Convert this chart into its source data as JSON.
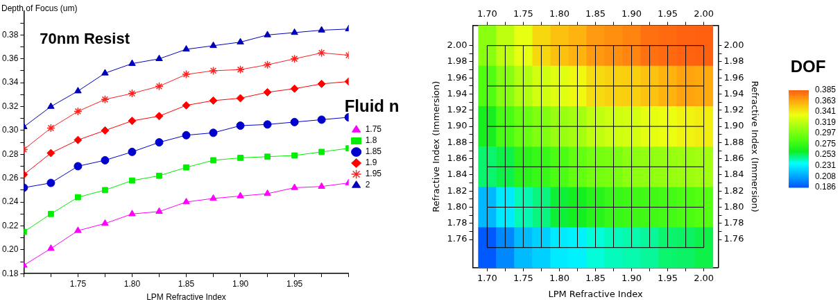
{
  "chart_data": [
    {
      "type": "line",
      "xlabel": "LPM Refractive Index",
      "ylabel": "Depth of Focus (um)",
      "legend_title": "Fluid n",
      "legend": "right",
      "annotations": [
        "70nm Resist"
      ],
      "x": [
        1.7,
        1.725,
        1.75,
        1.775,
        1.8,
        1.825,
        1.85,
        1.875,
        1.9,
        1.925,
        1.95,
        1.975,
        2.0
      ],
      "xlim": [
        1.7,
        2.0
      ],
      "xticks": [
        {
          "value": 1.7,
          "label": null
        },
        {
          "value": 1.725,
          "label": null
        },
        {
          "value": 1.75,
          "label": "1.75"
        },
        {
          "value": 1.775,
          "label": null
        },
        {
          "value": 1.8,
          "label": "1.80"
        },
        {
          "value": 1.825,
          "label": null
        },
        {
          "value": 1.85,
          "label": "1.85"
        },
        {
          "value": 1.875,
          "label": null
        },
        {
          "value": 1.9,
          "label": "1.90"
        },
        {
          "value": 1.925,
          "label": null
        },
        {
          "value": 1.95,
          "label": "1.95"
        },
        {
          "value": 1.975,
          "label": null
        },
        {
          "value": 2.0,
          "label": null
        }
      ],
      "ylim": [
        0.18,
        0.4
      ],
      "yticks": [
        {
          "value": 0.18,
          "label": "0.18"
        },
        {
          "value": 0.19,
          "label": null
        },
        {
          "value": 0.2,
          "label": "0.20"
        },
        {
          "value": 0.21,
          "label": null
        },
        {
          "value": 0.22,
          "label": "0.22"
        },
        {
          "value": 0.23,
          "label": null
        },
        {
          "value": 0.24,
          "label": "0.24"
        },
        {
          "value": 0.25,
          "label": null
        },
        {
          "value": 0.26,
          "label": "0.26"
        },
        {
          "value": 0.27,
          "label": null
        },
        {
          "value": 0.28,
          "label": "0.28"
        },
        {
          "value": 0.29,
          "label": null
        },
        {
          "value": 0.3,
          "label": "0.30"
        },
        {
          "value": 0.31,
          "label": null
        },
        {
          "value": 0.32,
          "label": "0.32"
        },
        {
          "value": 0.33,
          "label": null
        },
        {
          "value": 0.34,
          "label": "0.34"
        },
        {
          "value": 0.35,
          "label": null
        },
        {
          "value": 0.36,
          "label": "0.36"
        },
        {
          "value": 0.37,
          "label": null
        },
        {
          "value": 0.38,
          "label": "0.38"
        },
        {
          "value": 0.39,
          "label": null
        }
      ],
      "series": [
        {
          "name": "1.75",
          "color": "#ff00ff",
          "marker": "triangle",
          "values": [
            0.187,
            0.201,
            0.216,
            0.222,
            0.23,
            0.232,
            0.24,
            0.243,
            0.245,
            0.247,
            0.252,
            0.253,
            0.256
          ]
        },
        {
          "name": "1.8",
          "color": "#00ee00",
          "marker": "square",
          "values": [
            0.215,
            0.23,
            0.244,
            0.25,
            0.258,
            0.262,
            0.269,
            0.275,
            0.277,
            0.278,
            0.279,
            0.282,
            0.285
          ]
        },
        {
          "name": "1.85",
          "color": "#0000cc",
          "marker": "circle",
          "values": [
            0.252,
            0.256,
            0.27,
            0.275,
            0.282,
            0.29,
            0.296,
            0.298,
            0.304,
            0.305,
            0.307,
            0.309,
            0.311
          ]
        },
        {
          "name": "1.9",
          "color": "#ff0000",
          "marker": "diamond",
          "values": [
            0.263,
            0.281,
            0.292,
            0.3,
            0.308,
            0.312,
            0.321,
            0.325,
            0.327,
            0.332,
            0.335,
            0.339,
            0.341
          ]
        },
        {
          "name": "1.95",
          "color": "#ff2020",
          "marker": "cross",
          "values": [
            0.284,
            0.302,
            0.316,
            0.326,
            0.331,
            0.337,
            0.347,
            0.35,
            0.351,
            0.355,
            0.36,
            0.365,
            0.363
          ]
        },
        {
          "name": "2",
          "color": "#0000bb",
          "marker": "triangle",
          "values": [
            0.303,
            0.32,
            0.333,
            0.348,
            0.356,
            0.36,
            0.368,
            0.371,
            0.374,
            0.38,
            0.382,
            0.384,
            0.385
          ]
        }
      ]
    },
    {
      "type": "heatmap",
      "xlabel": "LPM Refractive Index",
      "ylabel": "Refractive Index (Immersion)",
      "y2label": "Refractive Index (Immersion)",
      "clabel": "DOF",
      "grid": true,
      "x": [
        1.7,
        1.725,
        1.75,
        1.775,
        1.8,
        1.825,
        1.85,
        1.875,
        1.9,
        1.925,
        1.95,
        1.975,
        2.0
      ],
      "y": [
        2.0,
        1.95,
        1.9,
        1.85,
        1.8,
        1.75
      ],
      "cells": [
        [
          0.303,
          0.32,
          0.333,
          0.348,
          0.356,
          0.36,
          0.368,
          0.371,
          0.374,
          0.38,
          0.382,
          0.384,
          0.385
        ],
        [
          0.284,
          0.302,
          0.316,
          0.326,
          0.331,
          0.337,
          0.347,
          0.35,
          0.351,
          0.355,
          0.36,
          0.365,
          0.363
        ],
        [
          0.263,
          0.281,
          0.292,
          0.3,
          0.308,
          0.312,
          0.321,
          0.325,
          0.327,
          0.332,
          0.335,
          0.339,
          0.341
        ],
        [
          0.252,
          0.256,
          0.27,
          0.275,
          0.282,
          0.29,
          0.296,
          0.298,
          0.304,
          0.305,
          0.307,
          0.309,
          0.311
        ],
        [
          0.215,
          0.23,
          0.244,
          0.25,
          0.258,
          0.262,
          0.269,
          0.275,
          0.277,
          0.278,
          0.279,
          0.282,
          0.285
        ],
        [
          0.187,
          0.201,
          0.216,
          0.222,
          0.23,
          0.232,
          0.24,
          0.243,
          0.245,
          0.247,
          0.252,
          0.253,
          0.256
        ]
      ],
      "clim": [
        0.186,
        0.385
      ],
      "cticks": [
        {
          "value": 0.186,
          "label": "0.186"
        },
        {
          "value": 0.208,
          "label": "0.208"
        },
        {
          "value": 0.231,
          "label": "0.231"
        },
        {
          "value": 0.253,
          "label": "0.253"
        },
        {
          "value": 0.275,
          "label": "0.275"
        },
        {
          "value": 0.297,
          "label": "0.297"
        },
        {
          "value": 0.319,
          "label": "0.319"
        },
        {
          "value": 0.341,
          "label": "0.341"
        },
        {
          "value": 0.363,
          "label": "0.363"
        },
        {
          "value": 0.385,
          "label": "0.385"
        }
      ],
      "colors": [
        "#0055ff",
        "#00aaff",
        "#00ffff",
        "#10ee20",
        "#55ff10",
        "#a0ff10",
        "#eeff10",
        "#ffb30f",
        "#ff6010"
      ],
      "xlim": [
        1.68,
        2.02
      ],
      "xticks": [
        {
          "value": 1.7,
          "label": "1.70"
        },
        {
          "value": 1.725,
          "label": null
        },
        {
          "value": 1.75,
          "label": "1.75"
        },
        {
          "value": 1.775,
          "label": null
        },
        {
          "value": 1.8,
          "label": "1.80"
        },
        {
          "value": 1.825,
          "label": null
        },
        {
          "value": 1.85,
          "label": "1.85"
        },
        {
          "value": 1.875,
          "label": null
        },
        {
          "value": 1.9,
          "label": "1.90"
        },
        {
          "value": 1.925,
          "label": null
        },
        {
          "value": 1.95,
          "label": "1.95"
        },
        {
          "value": 1.975,
          "label": null
        },
        {
          "value": 2.0,
          "label": "2.00"
        }
      ],
      "x2lim": [
        1.68,
        2.02
      ],
      "x2ticks": [
        {
          "value": 1.7,
          "label": "1.70"
        },
        {
          "value": 1.725,
          "label": null
        },
        {
          "value": 1.75,
          "label": "1.75"
        },
        {
          "value": 1.775,
          "label": null
        },
        {
          "value": 1.8,
          "label": "1.80"
        },
        {
          "value": 1.825,
          "label": null
        },
        {
          "value": 1.85,
          "label": "1.85"
        },
        {
          "value": 1.875,
          "label": null
        },
        {
          "value": 1.9,
          "label": "1.90"
        },
        {
          "value": 1.925,
          "label": null
        },
        {
          "value": 1.95,
          "label": "1.95"
        },
        {
          "value": 1.975,
          "label": null
        },
        {
          "value": 2.0,
          "label": "2.00"
        }
      ],
      "ylim": [
        1.725,
        2.025
      ],
      "yticks": [
        {
          "value": 1.76,
          "label": "1.76"
        },
        {
          "value": 1.77,
          "label": null
        },
        {
          "value": 1.78,
          "label": "1.78"
        },
        {
          "value": 1.79,
          "label": null
        },
        {
          "value": 1.8,
          "label": "1.80"
        },
        {
          "value": 1.81,
          "label": null
        },
        {
          "value": 1.82,
          "label": "1.82"
        },
        {
          "value": 1.83,
          "label": null
        },
        {
          "value": 1.84,
          "label": "1.84"
        },
        {
          "value": 1.85,
          "label": null
        },
        {
          "value": 1.86,
          "label": "1.86"
        },
        {
          "value": 1.87,
          "label": null
        },
        {
          "value": 1.88,
          "label": "1.88"
        },
        {
          "value": 1.89,
          "label": null
        },
        {
          "value": 1.9,
          "label": "1.90"
        },
        {
          "value": 1.91,
          "label": null
        },
        {
          "value": 1.92,
          "label": "1.92"
        },
        {
          "value": 1.93,
          "label": null
        },
        {
          "value": 1.94,
          "label": "1.94"
        },
        {
          "value": 1.95,
          "label": null
        },
        {
          "value": 1.96,
          "label": "1.96"
        },
        {
          "value": 1.97,
          "label": null
        },
        {
          "value": 1.98,
          "label": "1.98"
        },
        {
          "value": 1.99,
          "label": null
        },
        {
          "value": 2.0,
          "label": "2.00"
        }
      ],
      "y2lim": [
        1.725,
        2.025
      ],
      "y2ticks": [
        {
          "value": 1.76,
          "label": "1.76"
        },
        {
          "value": 1.77,
          "label": null
        },
        {
          "value": 1.78,
          "label": "1.78"
        },
        {
          "value": 1.79,
          "label": null
        },
        {
          "value": 1.8,
          "label": "1.80"
        },
        {
          "value": 1.81,
          "label": null
        },
        {
          "value": 1.82,
          "label": "1.82"
        },
        {
          "value": 1.83,
          "label": null
        },
        {
          "value": 1.84,
          "label": "1.84"
        },
        {
          "value": 1.85,
          "label": null
        },
        {
          "value": 1.86,
          "label": "1.86"
        },
        {
          "value": 1.87,
          "label": null
        },
        {
          "value": 1.88,
          "label": "1.88"
        },
        {
          "value": 1.89,
          "label": null
        },
        {
          "value": 1.9,
          "label": "1.90"
        },
        {
          "value": 1.91,
          "label": null
        },
        {
          "value": 1.92,
          "label": "1.92"
        },
        {
          "value": 1.93,
          "label": null
        },
        {
          "value": 1.94,
          "label": "1.94"
        },
        {
          "value": 1.95,
          "label": null
        },
        {
          "value": 1.96,
          "label": "1.96"
        },
        {
          "value": 1.97,
          "label": null
        },
        {
          "value": 1.98,
          "label": "1.98"
        },
        {
          "value": 1.99,
          "label": null
        },
        {
          "value": 2.0,
          "label": "2.00"
        }
      ]
    }
  ]
}
